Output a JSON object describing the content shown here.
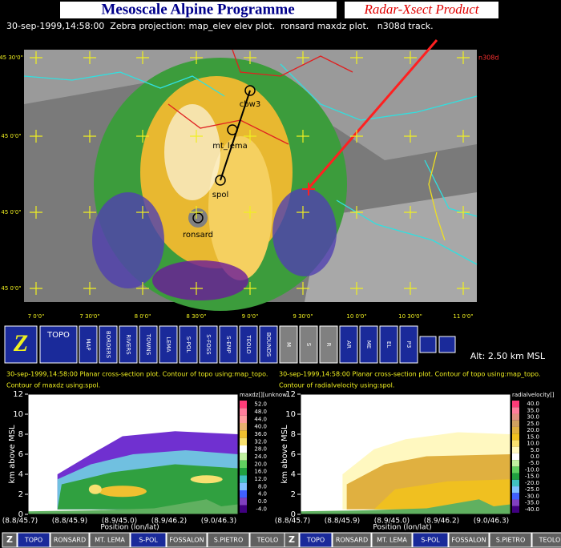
{
  "header": {
    "title": "Mesoscale Alpine Programme",
    "product": "Radar-Xsect Product"
  },
  "info_line": "30-sep-1999,14:58:00  Zebra projection: map_elev elev plot.  ronsard maxdz plot.   n308d track.",
  "map": {
    "lat_labels": [
      "45 30'0\"",
      "45 0'0\"",
      "45 0'0\"",
      "45 0'0\""
    ],
    "lon_labels": [
      "7 0'0\"",
      "7 30'0\"",
      "8 0'0\"",
      "8 30'0\"",
      "9 0'0\"",
      "9 30'0\"",
      "10 0'0\"",
      "10 30'0\"",
      "11 0'0\""
    ],
    "site_labels": [
      "cbw3",
      "mt_lema",
      "spol",
      "ronsard"
    ],
    "track_label": "n308d"
  },
  "toolbar": {
    "logo": "Z",
    "buttons": [
      "TOPO",
      "MAP",
      "BORDERS",
      "RIVERS",
      "TOWNS",
      "LEMA",
      "S-POL",
      "S-FOSS",
      "S-EMP",
      "TEOLO",
      "BOUNDS",
      "M",
      "S",
      "R",
      "AR",
      "ME",
      "EL",
      "P3"
    ],
    "altitude": "Alt: 2.50 km MSL"
  },
  "panels": [
    {
      "header": "30-sep-1999,14:58:00  Planar cross-section plot.  Contour of topo using:map_topo.",
      "subheader": "Contour of maxdz using:spol.",
      "y_label": "km above MSL",
      "ylim": [
        0,
        12
      ],
      "yticks": [
        0,
        2,
        4,
        6,
        8,
        10,
        12
      ],
      "x_label": "Position (lon/lat)",
      "x_ticks": [
        "(8.8/45.7)",
        "(8.8/45.9)",
        "(8.9/45.0)",
        "(8.9/46.2)",
        "(9.0/46.3)"
      ],
      "colorbar_title": "maxdz[][unknow",
      "colorbar_labels": [
        "52.0",
        "48.0",
        "44.0",
        "40.0",
        "36.0",
        "32.0",
        "28.0",
        "24.0",
        "20.0",
        "16.0",
        "12.0",
        "8.0",
        "4.0",
        "0.0",
        "-4.0"
      ],
      "colorbar_colors": [
        "#ff3c78",
        "#ff7d9c",
        "#ff9ea0",
        "#e8b070",
        "#f0c030",
        "#f8e070",
        "#ffffff",
        "#c0f0a0",
        "#60d060",
        "#20a040",
        "#40c0c0",
        "#80c0ff",
        "#4060ff",
        "#8040c0",
        "#400080"
      ]
    },
    {
      "header": "30-sep-1999,14:58:00  Planar cross-section plot.  Contour of topo using:map_topo.",
      "subheader": "Contour of radialvelocity using:spol.",
      "y_label": "km above MSL",
      "ylim": [
        0,
        12
      ],
      "yticks": [
        0,
        2,
        4,
        6,
        8,
        10,
        12
      ],
      "x_label": "Position (lon/lat)",
      "x_ticks": [
        "(8.8/45.7)",
        "(8.8/45.9)",
        "(8.9/45.0)",
        "(8.9/46.2)",
        "(9.0/46.3)"
      ],
      "colorbar_title": "radialvelocity[]",
      "colorbar_labels": [
        "40.0",
        "35.0",
        "30.0",
        "25.0",
        "20.0",
        "15.0",
        "10.0",
        "5.0",
        "0.0",
        "-5.0",
        "-10.0",
        "-15.0",
        "-20.0",
        "-25.0",
        "-30.0",
        "-35.0",
        "-40.0"
      ],
      "colorbar_colors": [
        "#ff3c78",
        "#ff7d9c",
        "#e09080",
        "#d0a060",
        "#e0b040",
        "#f0c020",
        "#f8e070",
        "#fff8c0",
        "#ffffff",
        "#c0f0a0",
        "#60d060",
        "#20a040",
        "#40c0c0",
        "#80c0ff",
        "#4060ff",
        "#8040c0",
        "#400080"
      ]
    }
  ],
  "bottom_buttons": [
    "Z",
    "TOPO",
    "RONSARD",
    "MT. LEMA",
    "S-POL",
    "FOSSALON",
    "S.PIETRO",
    "TEOLO"
  ]
}
